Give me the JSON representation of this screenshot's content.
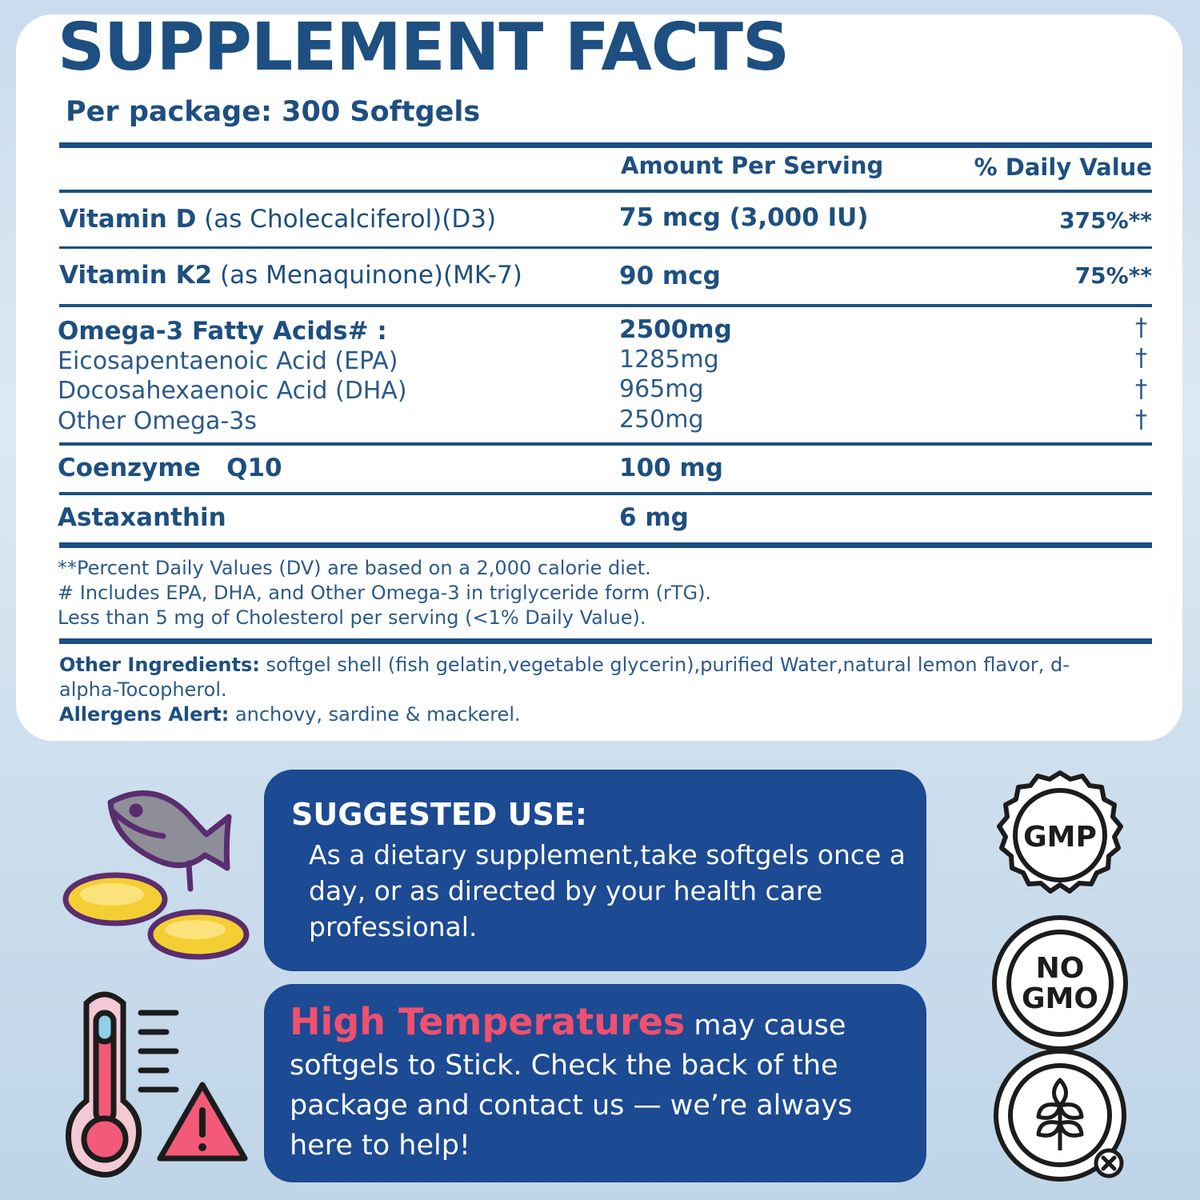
{
  "title": "SUPPLEMENT FACTS",
  "per_package": "Per package: 300 Softgels",
  "headers": {
    "amount": "Amount Per Serving",
    "daily_value": "% Daily Value"
  },
  "rows": [
    {
      "name": "Vitamin D",
      "qualifier": " (as Cholecalciferol)(D3)",
      "amount": "75 mcg (3,000 IU)",
      "dv": "375%**"
    },
    {
      "name": "Vitamin K2",
      "qualifier": " (as Menaquinone)(MK-7)",
      "amount": "90 mcg",
      "dv": "75%**"
    }
  ],
  "omega": {
    "name": "Omega-3 Fatty Acids# :",
    "amount": "2500mg",
    "dagger": "†",
    "subs": [
      {
        "name": "Eicosapentaenoic Acid (EPA)",
        "amount": "1285mg",
        "dagger": "†"
      },
      {
        "name": "Docosahexaenoic Acid (DHA)",
        "amount": "965mg",
        "dagger": "†"
      },
      {
        "name": "Other Omega-3s",
        "amount": "250mg",
        "dagger": "†"
      }
    ]
  },
  "coq10": {
    "name": "Coenzyme   Q10",
    "amount": "100 mg"
  },
  "astax": {
    "name": "Astaxanthin",
    "amount": "6 mg"
  },
  "footnotes": [
    "**Percent Daily Values (DV) are based on a 2,000 calorie diet.",
    "# Includes EPA, DHA, and Other Omega-3 in triglyceride form (rTG).",
    "Less than 5 mg of Cholesterol per serving (<1% Daily Value)."
  ],
  "other_ingredients": {
    "label": "Other Ingredients:",
    "text": " softgel shell (fish gelatin,vegetable glycerin),purified Water,natural lemon flavor, d-alpha-Tocopherol."
  },
  "allergens": {
    "label": "Allergens Alert:",
    "text": " anchovy, sardine & mackerel."
  },
  "suggested_use": {
    "title": "SUGGESTED USE:",
    "text": "As a dietary supplement,take softgels once a day, or as directed by your health care professional."
  },
  "temperature": {
    "highlight": "High Temperatures",
    "text": " may cause softgels to Stick. Check the back of the package and contact us — we’re always here to help!"
  },
  "badges": {
    "gmp": "GMP",
    "no_gmo_1": "NO",
    "no_gmo_2": "GMO"
  },
  "colors": {
    "navy": "#1d4f80",
    "panel_blue": "#1c4a93",
    "highlight_pink": "#f0506e",
    "softgel_yellow": "#f4cf33",
    "icon_purple": "#5a2d6e"
  },
  "icons": [
    "fish-icon",
    "softgel-icon",
    "thermometer-icon",
    "warning-icon",
    "gmp-badge-icon",
    "no-gmo-badge-icon",
    "gluten-free-badge-icon"
  ]
}
